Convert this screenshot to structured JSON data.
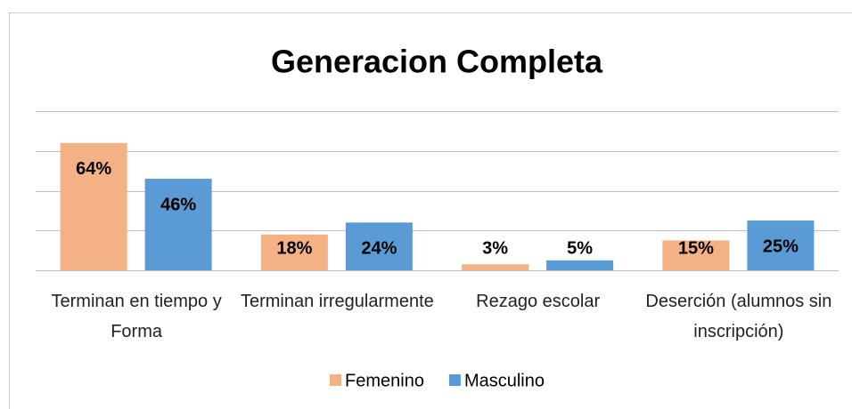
{
  "chart_data": {
    "type": "bar",
    "title": "Generacion Completa",
    "categories": [
      "Terminan en tiempo y Forma",
      "Terminan irregularmente",
      "Rezago escolar",
      "Deserción (alumnos sin inscripción)"
    ],
    "series": [
      {
        "name": "Femenino",
        "color": "#f4b183",
        "values": [
          64,
          18,
          3,
          15
        ],
        "value_labels": [
          "64%",
          "18%",
          "3%",
          "15%"
        ]
      },
      {
        "name": "Masculino",
        "color": "#5b9bd5",
        "values": [
          46,
          24,
          5,
          25
        ],
        "value_labels": [
          "46%",
          "24%",
          "5%",
          "25%"
        ]
      }
    ],
    "ylim": [
      0,
      80
    ],
    "yticks": [
      0,
      20,
      40,
      60,
      80
    ],
    "grid": true,
    "legend": "bottom"
  }
}
